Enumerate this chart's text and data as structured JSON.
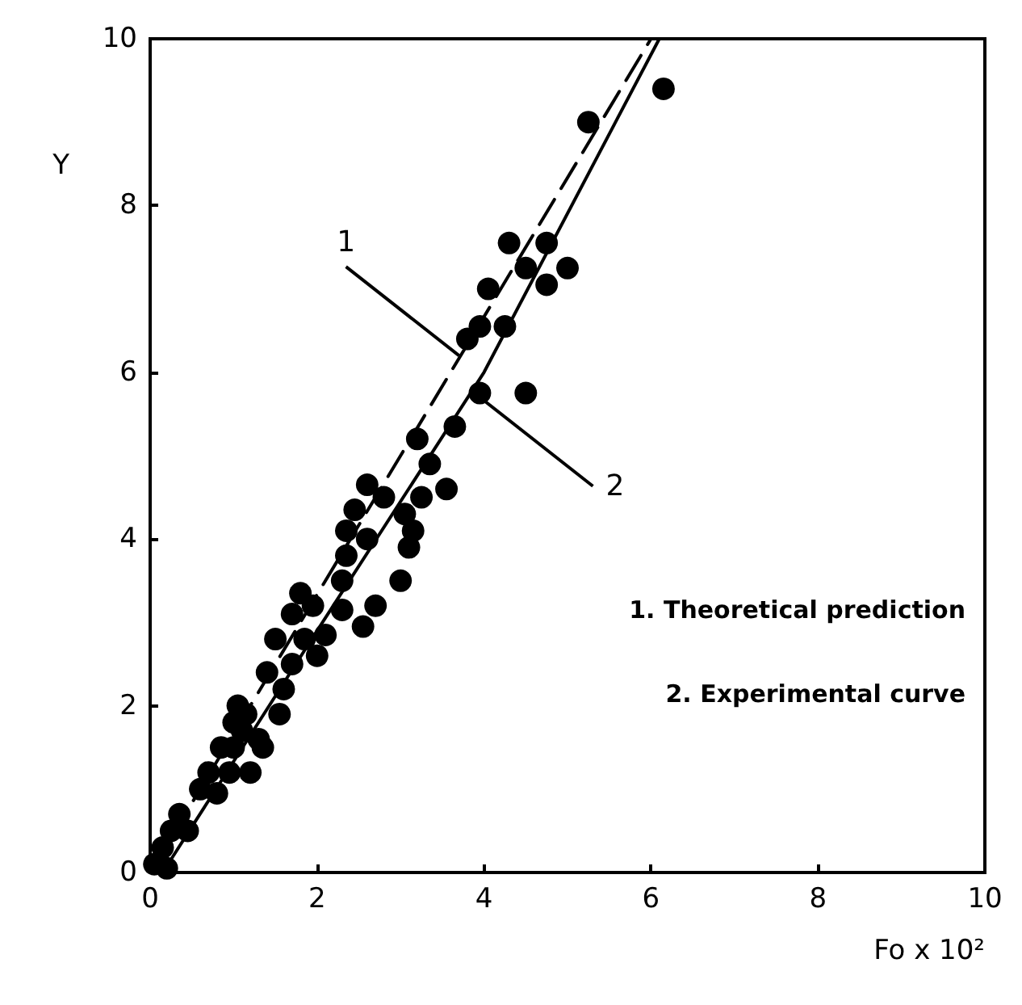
{
  "chart_data": {
    "type": "scatter",
    "xlabel": "Fo x 10²",
    "ylabel": "Y",
    "xlim": [
      0,
      10
    ],
    "xticks": [
      0,
      2,
      4,
      6,
      8,
      10
    ],
    "ylim": [
      0,
      10
    ],
    "yticks": [
      0,
      2,
      4,
      6,
      8,
      10
    ],
    "grid": false,
    "marker": "circle",
    "series": [
      {
        "color": "#000000",
        "x": [
          0.05,
          0.15,
          0.2,
          0.25,
          0.35,
          0.45,
          0.6,
          0.7,
          0.8,
          0.85,
          0.95,
          1.0,
          1.0,
          1.05,
          1.1,
          1.15,
          1.2,
          1.3,
          1.35,
          1.4,
          1.5,
          1.55,
          1.6,
          1.7,
          1.7,
          1.8,
          1.85,
          1.95,
          2.0,
          2.1,
          2.3,
          2.3,
          2.35,
          2.35,
          2.45,
          2.55,
          2.6,
          2.6,
          2.7,
          2.8,
          3.0,
          3.05,
          3.1,
          3.15,
          3.2,
          3.25,
          3.35,
          3.55,
          3.65,
          3.8,
          3.95,
          3.95,
          4.05,
          4.25,
          4.3,
          4.5,
          4.5,
          4.75,
          4.75,
          5.0,
          5.25,
          6.15
        ],
        "values": [
          0.1,
          0.3,
          0.05,
          0.5,
          0.7,
          0.5,
          1.0,
          1.2,
          0.95,
          1.5,
          1.2,
          1.8,
          1.5,
          2.0,
          1.7,
          1.9,
          1.2,
          1.6,
          1.5,
          2.4,
          2.8,
          1.9,
          2.2,
          3.1,
          2.5,
          3.35,
          2.8,
          3.2,
          2.6,
          2.85,
          3.5,
          3.15,
          4.1,
          3.8,
          4.35,
          2.95,
          4.65,
          4.0,
          3.2,
          4.5,
          3.5,
          4.3,
          3.9,
          4.1,
          5.2,
          4.5,
          4.9,
          4.6,
          5.35,
          6.4,
          5.75,
          6.55,
          7.0,
          6.55,
          7.55,
          5.75,
          7.25,
          7.55,
          7.05,
          7.25,
          9.0,
          9.4
        ]
      },
      {
        "type": "line",
        "color": "#000000",
        "line_style": "dashed",
        "marker": "none",
        "x": [
          0,
          6.0
        ],
        "values": [
          0,
          10
        ]
      },
      {
        "type": "line",
        "color": "#000000",
        "line_style": "solid",
        "marker": "none",
        "x": [
          0.15,
          2,
          4,
          6.1
        ],
        "values": [
          0,
          2.9,
          6.0,
          10
        ]
      }
    ],
    "annotations": [
      {
        "text": "1",
        "x": 3.7,
        "y": 6.2
      },
      {
        "text": "2",
        "x": 3.95,
        "y": 5.7
      },
      "1. Theoretical prediction",
      "2. Experimental curve"
    ]
  }
}
